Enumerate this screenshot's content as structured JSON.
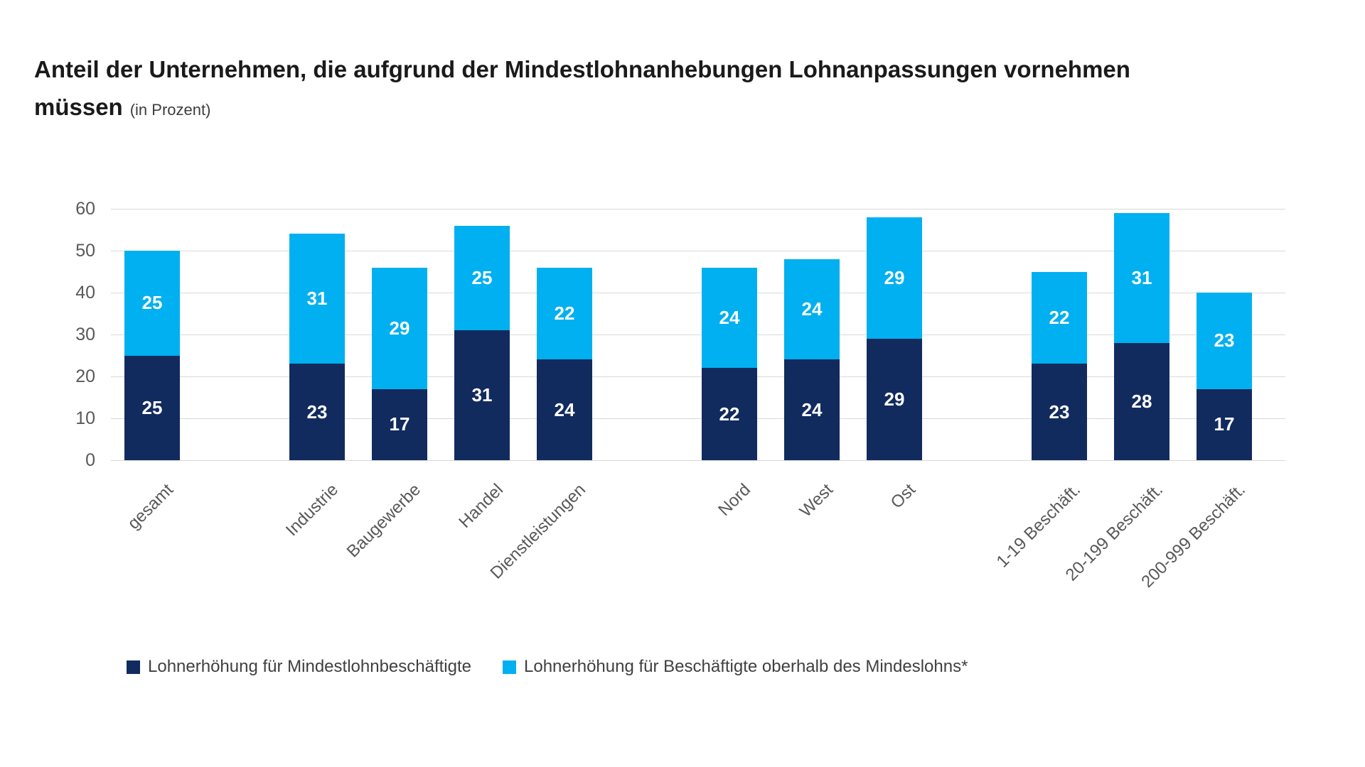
{
  "page": {
    "background": "#ffffff"
  },
  "title": {
    "line1": "Anteil der Unternehmen, die aufgrund der Mindestlohnanhebungen Lohnanpassungen vornehmen",
    "line2": "müssen",
    "unit_note": "(in Prozent)"
  },
  "chart_data": {
    "type": "bar",
    "stacked": true,
    "title": "Anteil der Unternehmen, die aufgrund der Mindestlohnanhebungen Lohnanpassungen vornehmen müssen (in Prozent)",
    "categories": [
      "gesamt",
      "Industrie",
      "Baugewerbe",
      "Handel",
      "Dienstleistungen",
      "Nord",
      "West",
      "Ost",
      "1-19 Beschäft.",
      "20-199 Beschäft.",
      "200-999 Beschäft."
    ],
    "group_sizes": [
      1,
      4,
      3,
      3
    ],
    "series": [
      {
        "name": "Lohnerhöhung für Mindestlohnbeschäftigte",
        "color": "#122b5e",
        "values": [
          25,
          23,
          17,
          31,
          24,
          22,
          24,
          29,
          23,
          28,
          17
        ]
      },
      {
        "name": "Lohnerhöhung für Beschäftigte oberhalb des Mindeslohns*",
        "color": "#00b0f0",
        "values": [
          25,
          31,
          29,
          25,
          22,
          24,
          24,
          29,
          22,
          31,
          23
        ]
      }
    ],
    "totals": [
      50,
      54,
      46,
      56,
      46,
      46,
      48,
      58,
      45,
      59,
      40
    ],
    "ylim": [
      0,
      60
    ],
    "yticks": [
      0,
      10,
      20,
      30,
      40,
      50,
      60
    ],
    "grid": true,
    "legend_position": "bottom",
    "bar_label_color": "#ffffff",
    "axis_label_color": "#595959",
    "gridline_color": "#d9d9d9"
  }
}
